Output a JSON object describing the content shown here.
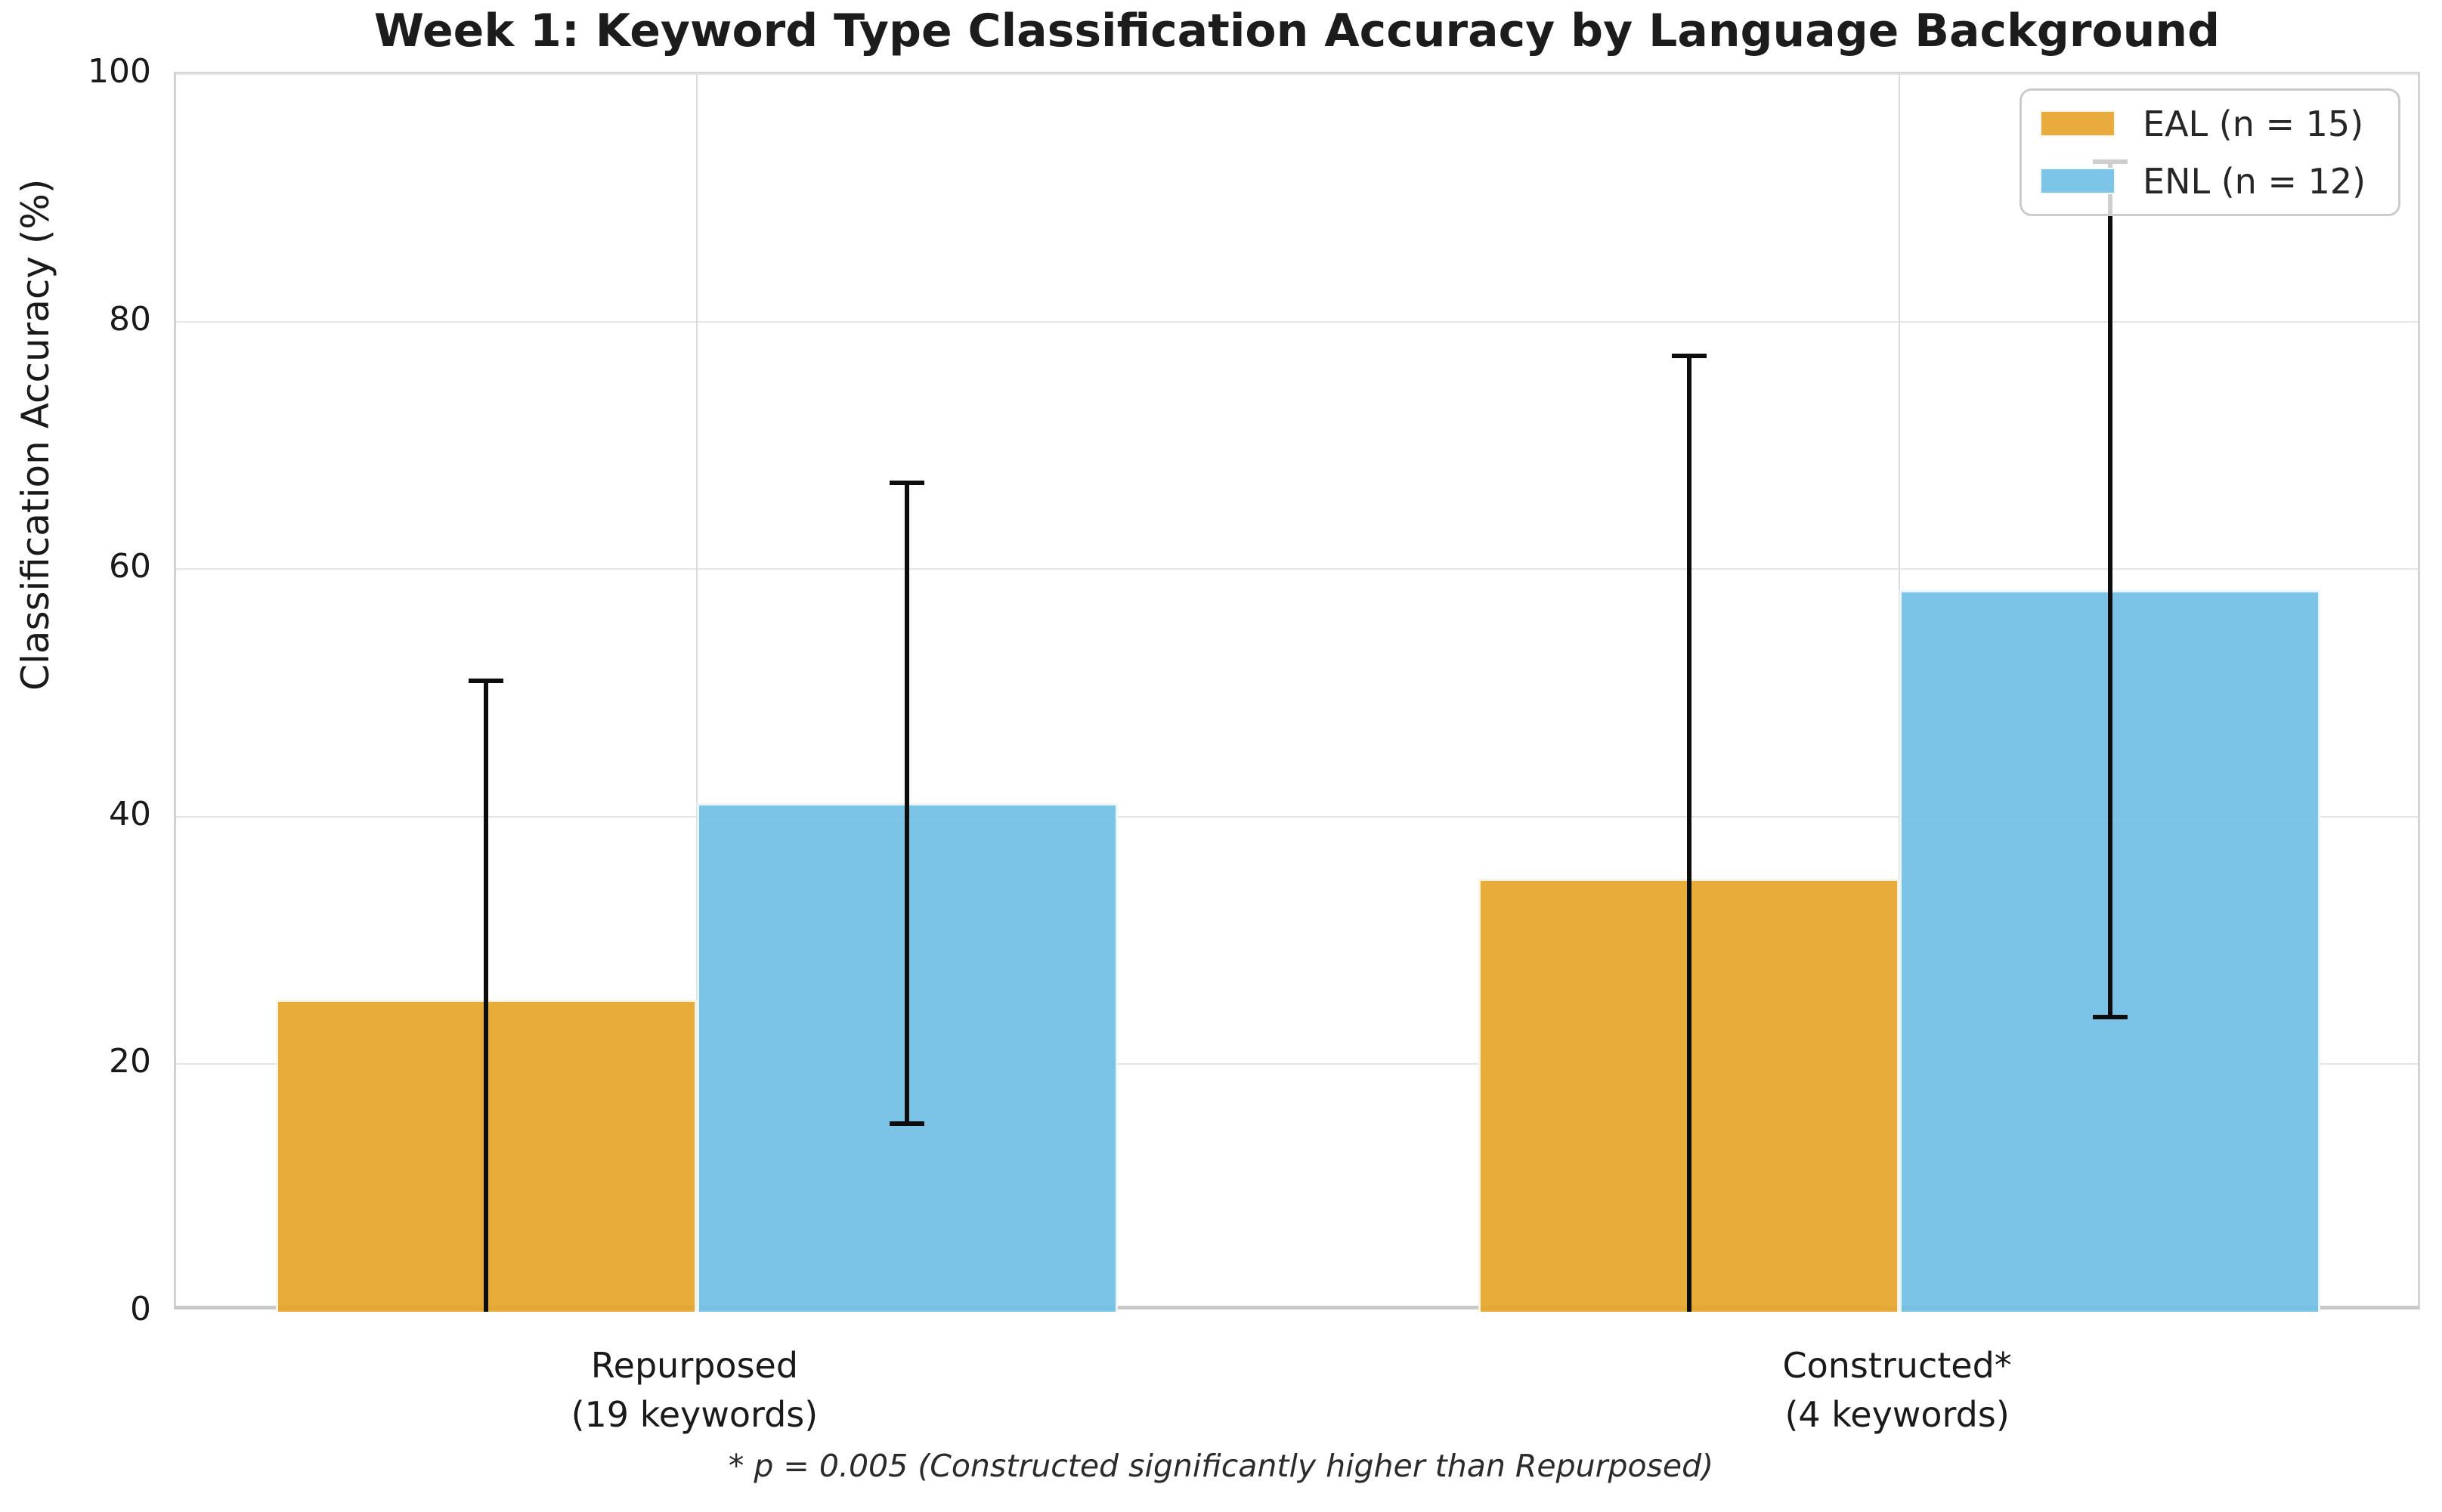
{
  "chart_data": {
    "type": "bar",
    "title": "Week 1: Keyword Type Classification Accuracy by Language Background",
    "ylabel": "Classification Accuracy (%)",
    "xlabel": "",
    "footnote": "* p = 0.005 (Constructed significantly higher than Repurposed)",
    "ylim": [
      0,
      100
    ],
    "yticks": [
      0,
      20,
      40,
      60,
      80,
      100
    ],
    "grid": true,
    "legend_position": "upper right",
    "categories": [
      "Repurposed (19 keywords)",
      "Constructed* (4 keywords)"
    ],
    "category_lines": [
      [
        "Repurposed",
        "(19 keywords)"
      ],
      [
        "Constructed*",
        "(4 keywords)"
      ]
    ],
    "series": [
      {
        "name": "EAL (n = 15)",
        "color": "#E6A326",
        "legend_color": "#E9AB3D",
        "values": [
          25.2,
          35.0
        ],
        "err_low": [
          -0.6,
          -7.2
        ],
        "err_high": [
          51.0,
          77.2
        ]
      },
      {
        "name": "ENL (n = 12)",
        "color": "#6EBDE6",
        "legend_color": "#7DC4E9",
        "values": [
          41.1,
          58.3
        ],
        "err_low": [
          15.2,
          23.8
        ],
        "err_high": [
          67.0,
          92.9
        ]
      }
    ],
    "error_bar_color": "#0d0d0d",
    "grid_color": "#e5e5e5",
    "axis_color": "#c9c9c9",
    "bar_alpha": 0.9
  }
}
